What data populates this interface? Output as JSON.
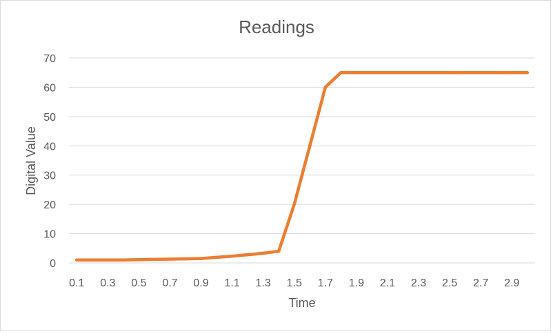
{
  "chart_data": {
    "type": "line",
    "title": "Readings",
    "xlabel": "Time",
    "ylabel": "Digital Value",
    "ylim": [
      0,
      70
    ],
    "yticks": [
      "0",
      "10",
      "20",
      "30",
      "40",
      "50",
      "60",
      "70"
    ],
    "categories": [
      "0.1",
      "0.2",
      "0.3",
      "0.4",
      "0.5",
      "0.6",
      "0.7",
      "0.8",
      "0.9",
      "1",
      "1.1",
      "1.2",
      "1.3",
      "1.4",
      "1.5",
      "1.6",
      "1.7",
      "1.8",
      "1.9",
      "2",
      "2.1",
      "2.2",
      "2.3",
      "2.4",
      "2.5",
      "2.6",
      "2.7",
      "2.8",
      "2.9",
      "3"
    ],
    "xtick_labels": [
      "0.1",
      "0.3",
      "0.5",
      "0.7",
      "0.9",
      "1.1",
      "1.3",
      "1.5",
      "1.7",
      "1.9",
      "2.1",
      "2.3",
      "2.5",
      "2.7",
      "2.9"
    ],
    "series": [
      {
        "values": [
          1,
          1,
          1,
          1,
          1.1,
          1.2,
          1.3,
          1.4,
          1.5,
          1.9,
          2.3,
          2.8,
          3.3,
          4,
          20,
          40,
          60,
          65,
          65,
          65,
          65,
          65,
          65,
          65,
          65,
          65,
          65,
          65,
          65,
          65
        ],
        "color": "#ED7D31"
      }
    ],
    "grid": true,
    "legend": "none",
    "colors": {
      "gridline": "#d9d9d9",
      "text": "#595959",
      "line": "#ED7D31"
    }
  }
}
